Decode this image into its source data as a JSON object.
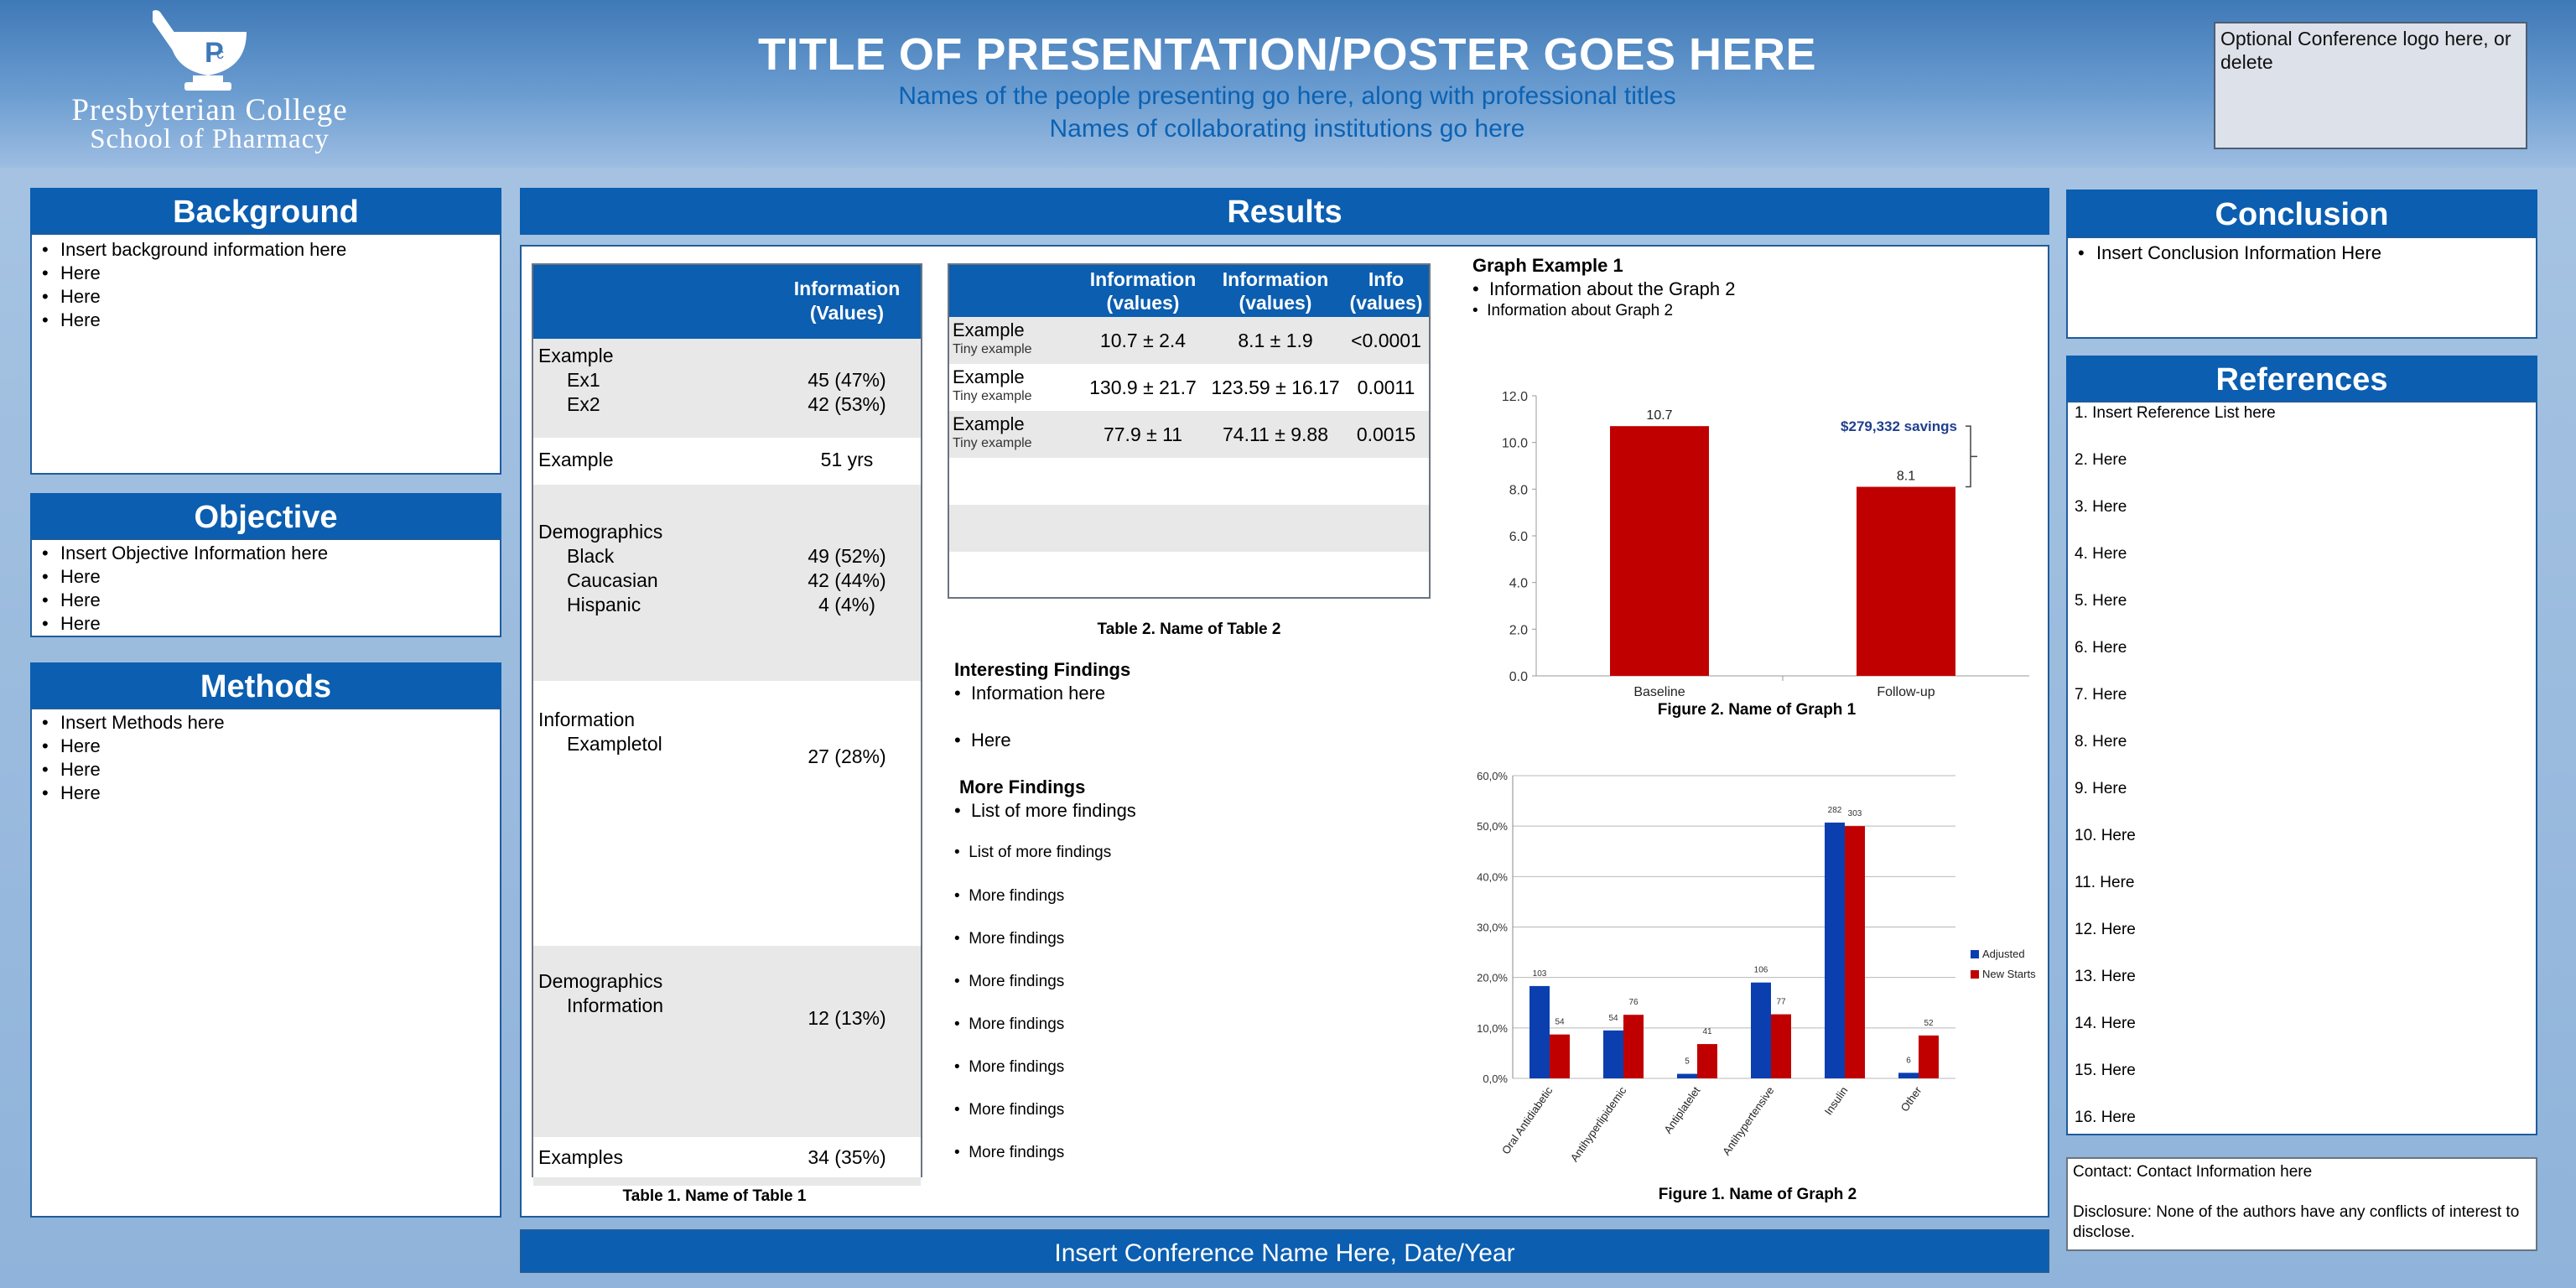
{
  "header": {
    "title": "TITLE OF PRESENTATION/POSTER GOES HERE",
    "subtitle1": "Names of the people presenting go here, along with professional titles",
    "subtitle2": "Names of collaborating institutions go here",
    "logo_line1": "Presbyterian College",
    "logo_line2": "School of Pharmacy",
    "conference_logo_placeholder": "Optional Conference logo here, or delete"
  },
  "background": {
    "title": "Background",
    "items": [
      "Insert background information here",
      "Here",
      "Here",
      "Here"
    ]
  },
  "objective": {
    "title": "Objective",
    "items": [
      "Insert Objective Information here",
      "Here",
      "Here",
      "Here"
    ]
  },
  "methods": {
    "title": "Methods",
    "items": [
      "Insert Methods here",
      "Here",
      "Here",
      "Here"
    ]
  },
  "results": {
    "title": "Results",
    "table1": {
      "header": "Information (Values)",
      "caption": "Table 1. Name of Table 1",
      "rows": {
        "r1_label": "Example",
        "r1_sub1": "Ex1",
        "r1_val1": "45 (47%)",
        "r1_sub2": "Ex2",
        "r1_val2": "42 (53%)",
        "r2_label": "Example",
        "r2_val": "51 yrs",
        "r3_label": "Demographics",
        "r3_sub1": "Black",
        "r3_val1": "49 (52%)",
        "r3_sub2": "Caucasian",
        "r3_val2": "42 (44%)",
        "r3_sub3": "Hispanic",
        "r3_val3": "4 (4%)",
        "r4_label": "Information",
        "r4_sub": "Exampletol",
        "r4_val": "27 (28%)",
        "r5_label": "Demographics",
        "r5_sub": "Information",
        "r5_val": "12 (13%)",
        "r6_label": "Examples",
        "r6_val": "34 (35%)"
      }
    },
    "table2": {
      "headers": [
        "Information (values)",
        "Information (values)",
        "Info (values)"
      ],
      "caption": "Table 2. Name of Table 2",
      "rows": [
        {
          "label": "Example",
          "tiny": "Tiny example",
          "v1": "10.7 ± 2.4",
          "v2": "8.1 ± 1.9",
          "v3": "<0.0001"
        },
        {
          "label": "Example",
          "tiny": "Tiny example",
          "v1": "130.9 ± 21.7",
          "v2": "123.59 ± 16.17",
          "v3": "0.0011"
        },
        {
          "label": "Example",
          "tiny": "Tiny example",
          "v1": "77.9 ± 11",
          "v2": "74.11 ± 9.88",
          "v3": "0.0015"
        }
      ]
    },
    "findings": {
      "title": "Interesting Findings",
      "items": [
        "Information here",
        "Here"
      ],
      "more_title": "More Findings",
      "more_items": [
        "List of more findings",
        "List of more findings",
        "More findings",
        "More findings",
        "More findings",
        "More findings",
        "More findings",
        "More findings",
        "More findings"
      ]
    },
    "graph1_text": {
      "title": "Graph Example 1",
      "items": [
        "Information about the Graph 2",
        "Information about Graph 2"
      ]
    }
  },
  "conclusion": {
    "title": "Conclusion",
    "items": [
      "Insert Conclusion Information Here"
    ]
  },
  "references": {
    "title": "References",
    "items": [
      "1. Insert Reference List here",
      "2. Here",
      "3. Here",
      "4. Here",
      "5. Here",
      "6. Here",
      "7. Here",
      "8. Here",
      "9. Here",
      "10. Here",
      "11. Here",
      "12. Here",
      "13. Here",
      "14. Here",
      "15. Here",
      "16. Here"
    ]
  },
  "contact": {
    "line1": "Contact: Contact Information here",
    "line2": "Disclosure: None of the authors have any conflicts of interest to disclose."
  },
  "footer": {
    "text": "Insert Conference Name Here, Date/Year"
  },
  "colors": {
    "primary_blue": "#0b5eb0",
    "bar_red": "#c00000",
    "bar_blue": "#0b3fb0"
  },
  "chart_data": [
    {
      "type": "bar",
      "title": "",
      "caption": "Figure 2. Name of Graph 1",
      "categories": [
        "Baseline",
        "Follow-up"
      ],
      "values": [
        10.7,
        8.1
      ],
      "value_labels": [
        "10.7",
        "8.1"
      ],
      "ylim": [
        0,
        12
      ],
      "yticks": [
        "0.0",
        "2.0",
        "4.0",
        "6.0",
        "8.0",
        "10.0",
        "12.0"
      ],
      "annotation": "$279,332 savings",
      "grid": false
    },
    {
      "type": "bar",
      "title": "",
      "caption": "Figure  1. Name of Graph 2",
      "categories": [
        "Oral Antidiabetic",
        "Antihyperlipidemic",
        "Antiplatelet",
        "Antihypertensive",
        "Insulin",
        "Other"
      ],
      "series": [
        {
          "name": "Adjusted",
          "values": [
            18.3,
            9.5,
            0.9,
            19.0,
            50.7,
            1.1
          ],
          "labels": [
            "103",
            "54",
            "5",
            "106",
            "282",
            "6"
          ]
        },
        {
          "name": "New Starts",
          "values": [
            8.7,
            12.6,
            6.8,
            12.7,
            50.0,
            8.5
          ],
          "labels": [
            "54",
            "76",
            "41",
            "77",
            "303",
            "52"
          ]
        }
      ],
      "ylim": [
        0,
        60
      ],
      "yticks": [
        "0,0%",
        "10,0%",
        "20,0%",
        "30,0%",
        "40,0%",
        "50,0%",
        "60,0%"
      ],
      "legend": "right",
      "grid": true
    }
  ]
}
